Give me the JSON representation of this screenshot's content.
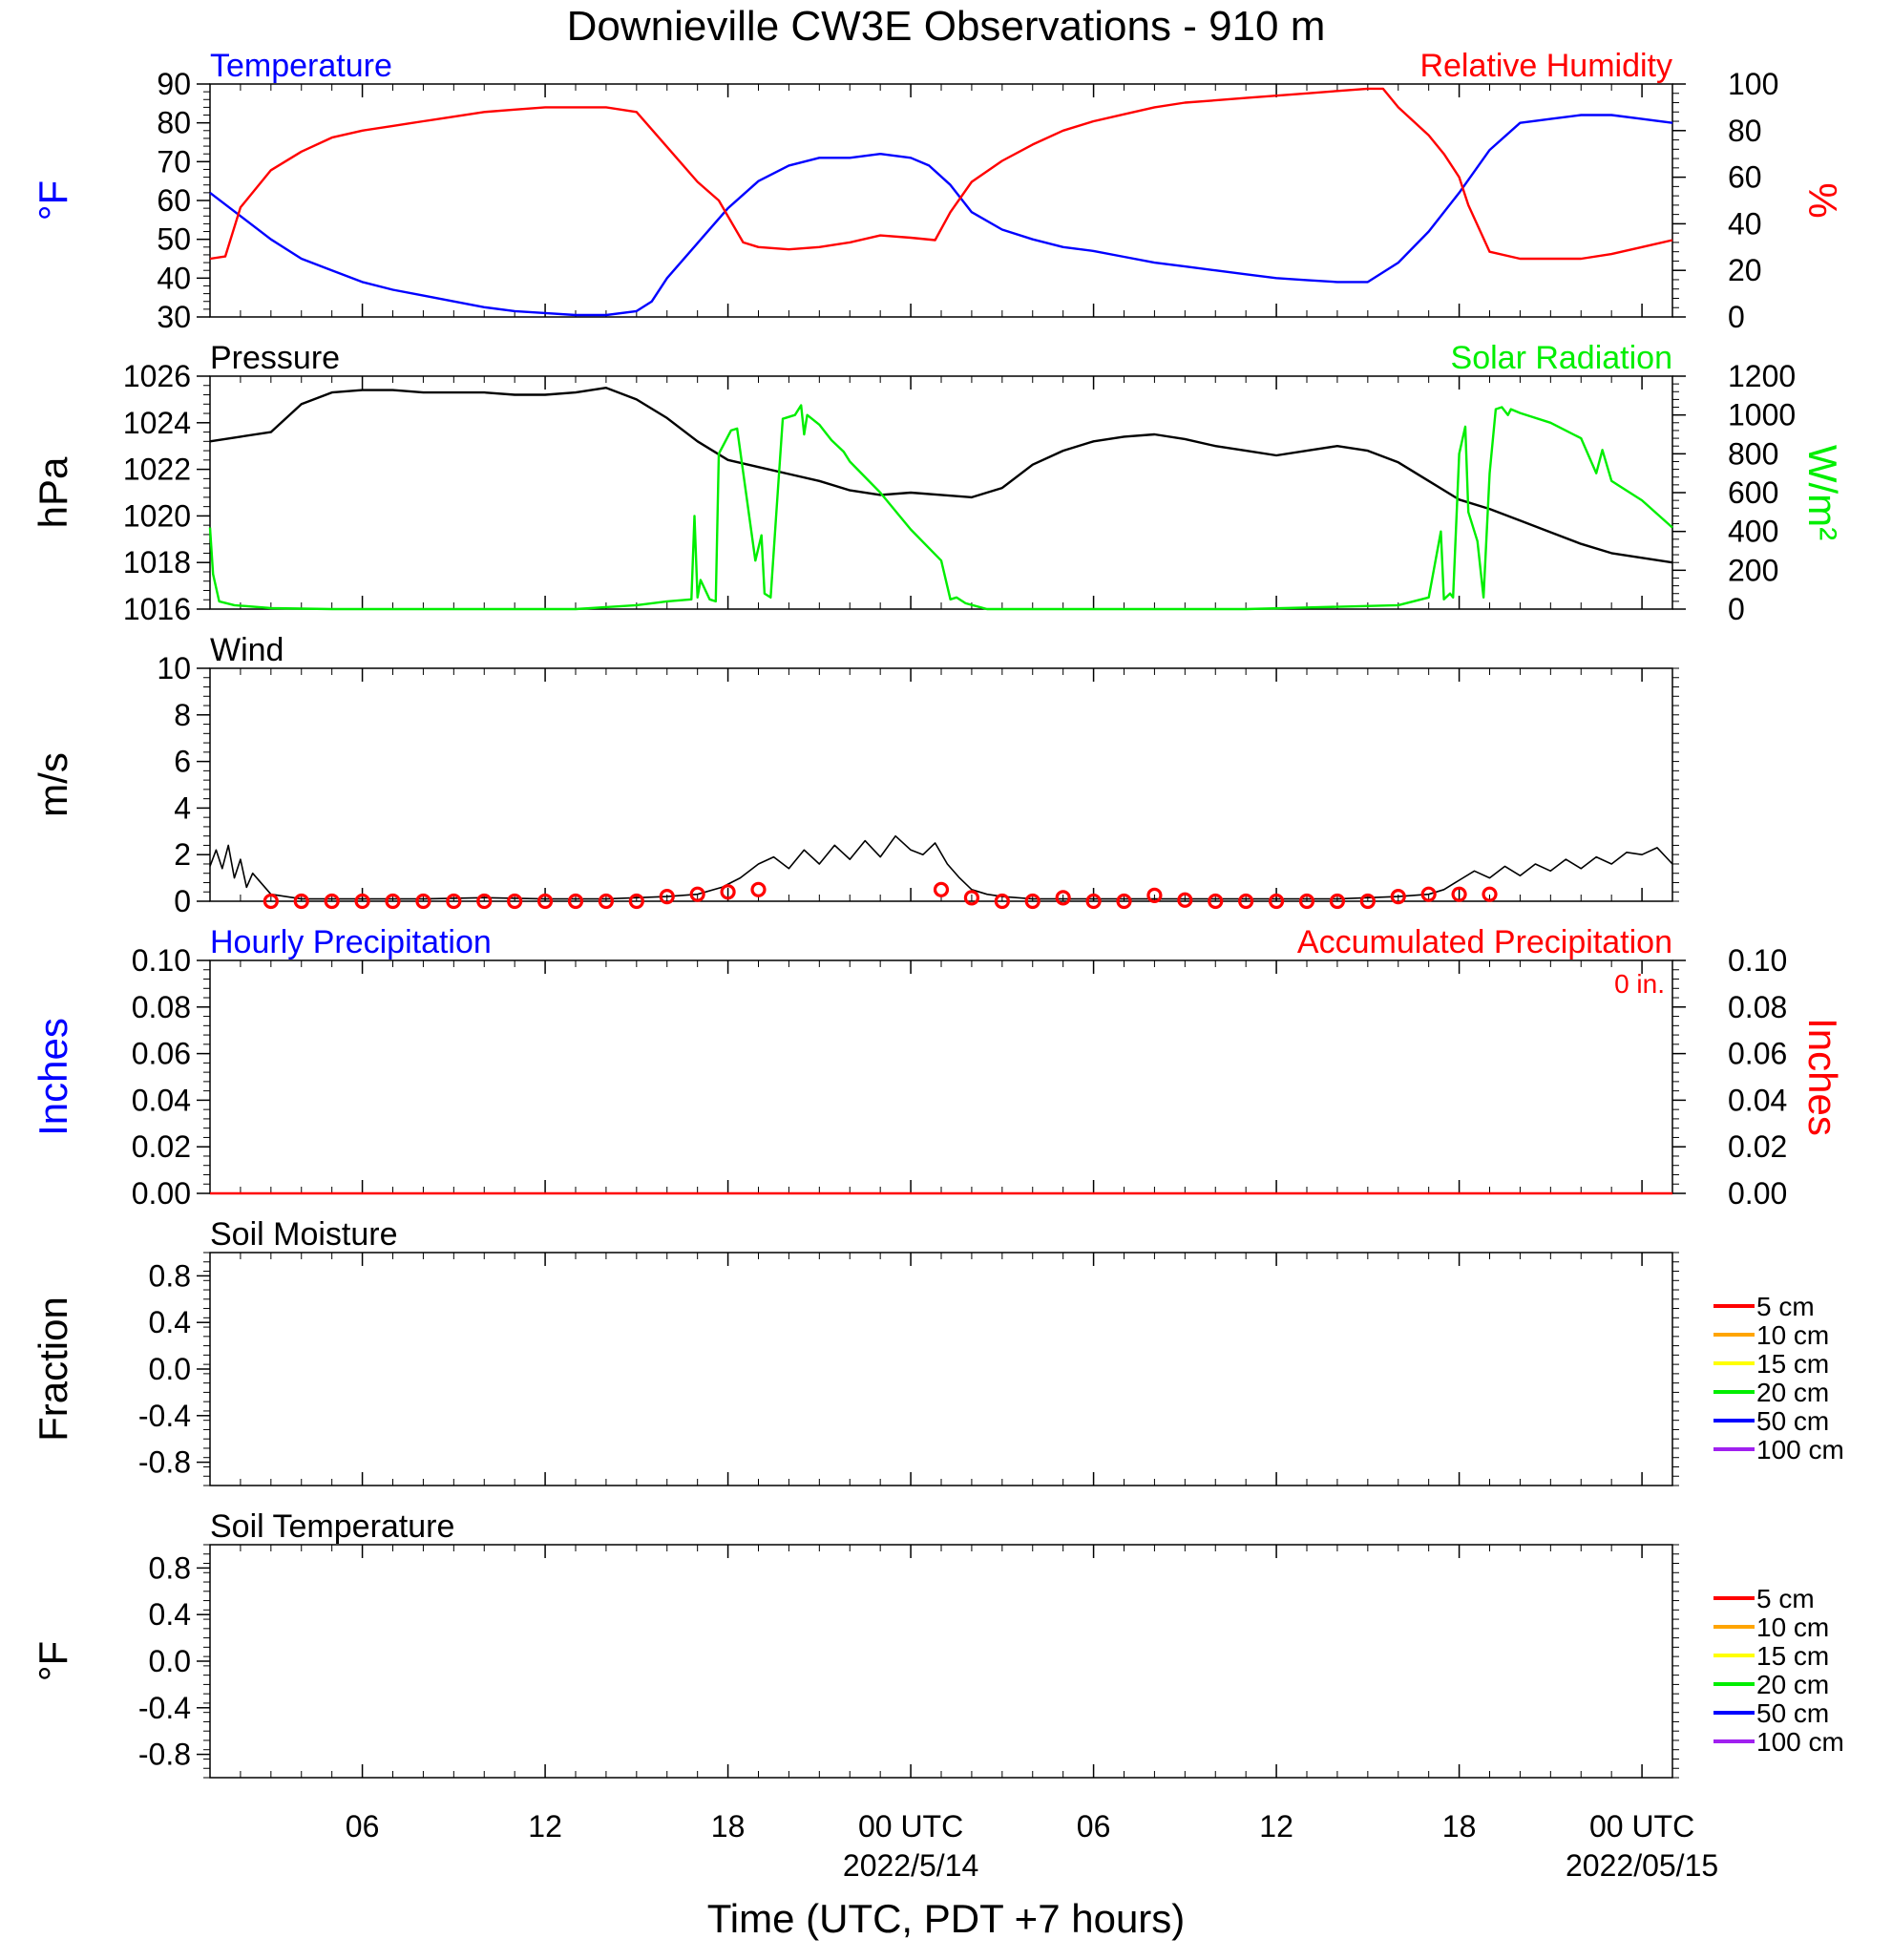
{
  "figure": {
    "title": "Downieville CW3E Observations - 910 m",
    "xlabel": "Time (UTC, PDT +7 hours)",
    "x_ticks": [
      {
        "hour": 6,
        "label": "06",
        "date": ""
      },
      {
        "hour": 12,
        "label": "12",
        "date": ""
      },
      {
        "hour": 18,
        "label": "18",
        "date": ""
      },
      {
        "hour": 24,
        "label": "00 UTC",
        "date": "2022/5/14"
      },
      {
        "hour": 30,
        "label": "06",
        "date": ""
      },
      {
        "hour": 36,
        "label": "12",
        "date": ""
      },
      {
        "hour": 42,
        "label": "18",
        "date": ""
      },
      {
        "hour": 48,
        "label": "00 UTC",
        "date": "2022/05/15"
      }
    ],
    "x_range_hours": [
      1,
      49
    ],
    "colors": {
      "blue": "#0000ff",
      "red": "#ff0000",
      "green": "#00ee00",
      "black": "#000000",
      "orange": "#ffa500",
      "yellow": "#ffff00",
      "purple": "#a020f0"
    }
  },
  "chart_data": [
    {
      "type": "line",
      "panel": "temperature_rh",
      "title_left": "Temperature",
      "title_right": "Relative Humidity",
      "ylabel_left": "°F",
      "ylabel_right": "%",
      "ylim_left": [
        30,
        90
      ],
      "ylim_right": [
        0,
        100
      ],
      "yticks_left": [
        "30",
        "40",
        "50",
        "60",
        "70",
        "80",
        "90"
      ],
      "yticks_right": [
        "0",
        "20",
        "40",
        "60",
        "80",
        "100"
      ],
      "series": [
        {
          "name": "Temperature",
          "axis": "left",
          "color": "#0000ff",
          "x_hours": [
            1,
            2,
            3,
            4,
            5,
            6,
            7,
            8,
            9,
            10,
            11,
            12,
            13,
            14,
            15,
            15.5,
            16,
            17,
            18,
            19,
            20,
            21,
            22,
            23,
            24,
            24.6,
            25.3,
            26,
            27,
            28,
            29,
            30,
            31,
            32,
            33,
            34,
            35,
            36,
            37,
            38,
            39,
            40,
            41,
            42,
            43,
            44,
            45,
            46,
            47,
            48,
            49
          ],
          "values": [
            62,
            56,
            50,
            45,
            42,
            39,
            37,
            35.5,
            34,
            32.5,
            31.5,
            31,
            30.5,
            30.5,
            31.5,
            34,
            40,
            49,
            58,
            65,
            69,
            71,
            71,
            72,
            71,
            69,
            64,
            57,
            52.5,
            50,
            48,
            47,
            45.5,
            44,
            43,
            42,
            41,
            40,
            39.5,
            39,
            39,
            44,
            52,
            62,
            73,
            80,
            81,
            82,
            82,
            81,
            80
          ]
        },
        {
          "name": "Relative Humidity",
          "axis": "right",
          "color": "#ff0000",
          "x_hours": [
            1,
            1.5,
            2,
            3,
            4,
            5,
            6,
            7,
            8,
            9,
            10,
            11,
            12,
            13,
            14,
            15,
            16,
            17,
            17.7,
            18.5,
            19,
            20,
            21,
            22,
            23,
            24,
            24.8,
            25.3,
            26,
            27,
            28,
            29,
            30,
            31,
            32,
            33,
            34,
            35,
            36,
            37,
            38,
            39,
            39.5,
            40,
            41,
            41.5,
            42,
            42.3,
            43,
            44,
            45,
            46,
            47,
            48,
            49
          ],
          "values": [
            25,
            26,
            47,
            63,
            71,
            77,
            80,
            82,
            84,
            86,
            88,
            89,
            90,
            90,
            90,
            88,
            73,
            58,
            50,
            32,
            30,
            29,
            30,
            32,
            35,
            34,
            33,
            45,
            58,
            67,
            74,
            80,
            84,
            87,
            90,
            92,
            93,
            94,
            95,
            96,
            97,
            98,
            98,
            90,
            78,
            70,
            60,
            48,
            28,
            25,
            25,
            25,
            27,
            30,
            33
          ]
        }
      ]
    },
    {
      "type": "line",
      "panel": "pressure_solar",
      "title_left": "Pressure",
      "title_right": "Solar Radiation",
      "ylabel_left": "hPa",
      "ylabel_right": "W/m²",
      "ylim_left": [
        1016,
        1026
      ],
      "ylim_right": [
        0,
        1200
      ],
      "yticks_left": [
        "1016",
        "1018",
        "1020",
        "1022",
        "1024",
        "1026"
      ],
      "yticks_right": [
        "0",
        "200",
        "400",
        "600",
        "800",
        "1000",
        "1200"
      ],
      "series": [
        {
          "name": "Pressure",
          "axis": "left",
          "color": "#000000",
          "x_hours": [
            1,
            2,
            3,
            4,
            5,
            6,
            7,
            8,
            9,
            10,
            11,
            12,
            13,
            14,
            15,
            16,
            17,
            18,
            19,
            20,
            21,
            22,
            23,
            24,
            25,
            26,
            27,
            28,
            29,
            30,
            31,
            32,
            33,
            34,
            35,
            36,
            37,
            38,
            39,
            40,
            41,
            42,
            43,
            44,
            45,
            46,
            47,
            48,
            49
          ],
          "values": [
            1023.2,
            1023.4,
            1023.6,
            1024.8,
            1025.3,
            1025.4,
            1025.4,
            1025.3,
            1025.3,
            1025.3,
            1025.2,
            1025.2,
            1025.3,
            1025.5,
            1025.0,
            1024.2,
            1023.2,
            1022.4,
            1022.1,
            1021.8,
            1021.5,
            1021.1,
            1020.9,
            1021.0,
            1020.9,
            1020.8,
            1021.2,
            1022.2,
            1022.8,
            1023.2,
            1023.4,
            1023.5,
            1023.3,
            1023.0,
            1022.8,
            1022.6,
            1022.8,
            1023.0,
            1022.8,
            1022.3,
            1021.5,
            1020.7,
            1020.3,
            1019.8,
            1019.3,
            1018.8,
            1018.4,
            1018.2,
            1018.0
          ]
        },
        {
          "name": "Solar Radiation",
          "axis": "right",
          "color": "#00ee00",
          "x_hours": [
            1,
            1.1,
            1.3,
            1.8,
            3,
            5,
            10,
            13,
            15,
            16,
            16.8,
            16.9,
            17.0,
            17.1,
            17.4,
            17.6,
            17.7,
            18.1,
            18.3,
            18.9,
            19.1,
            19.2,
            19.4,
            19.6,
            19.8,
            20.2,
            20.4,
            20.5,
            20.6,
            21.0,
            21.2,
            21.4,
            21.8,
            22.0,
            23,
            24,
            25,
            25.3,
            25.5,
            25.8,
            26.5,
            28,
            30,
            35,
            40,
            41,
            41.4,
            41.5,
            41.7,
            41.8,
            42.0,
            42.2,
            42.3,
            42.6,
            42.8,
            43.0,
            43.2,
            43.4,
            43.6,
            43.7,
            44.0,
            45,
            46,
            46.5,
            46.7,
            47,
            48,
            49
          ],
          "values": [
            420,
            180,
            40,
            20,
            5,
            0,
            0,
            0,
            20,
            40,
            50,
            480,
            60,
            150,
            50,
            40,
            800,
            920,
            930,
            250,
            380,
            80,
            60,
            520,
            980,
            1000,
            1050,
            900,
            1000,
            950,
            910,
            870,
            810,
            760,
            600,
            410,
            250,
            50,
            60,
            30,
            0,
            0,
            0,
            0,
            20,
            60,
            400,
            50,
            80,
            60,
            800,
            940,
            500,
            350,
            60,
            700,
            1030,
            1040,
            1000,
            1030,
            1010,
            960,
            880,
            700,
            820,
            660,
            560,
            420
          ]
        }
      ]
    },
    {
      "type": "line",
      "panel": "wind",
      "title_left": "Wind",
      "ylabel_left": "m/s",
      "ylim_left": [
        0,
        10
      ],
      "yticks_left": [
        "0",
        "2",
        "4",
        "6",
        "8",
        "10"
      ],
      "series": [
        {
          "name": "Wind",
          "color": "#000000",
          "x_hours": [
            1,
            1.2,
            1.4,
            1.6,
            1.8,
            2,
            2.2,
            2.4,
            3,
            4,
            6,
            8,
            10,
            12,
            14,
            15,
            16,
            17,
            17.8,
            18.4,
            19,
            19.5,
            20,
            20.5,
            21,
            21.5,
            22,
            22.5,
            23,
            23.5,
            24,
            24.4,
            24.8,
            25.2,
            25.6,
            26,
            26.5,
            27,
            28,
            30,
            32,
            34,
            36,
            38,
            40,
            41,
            41.5,
            42,
            42.5,
            43,
            43.5,
            44,
            44.5,
            45,
            45.5,
            46,
            46.5,
            47,
            47.5,
            48,
            48.5,
            49
          ],
          "values": [
            1.5,
            2.2,
            1.4,
            2.4,
            1.0,
            1.8,
            0.6,
            1.2,
            0.3,
            0.1,
            0.1,
            0.1,
            0.15,
            0.1,
            0.1,
            0.15,
            0.2,
            0.3,
            0.6,
            1.0,
            1.6,
            1.9,
            1.4,
            2.2,
            1.6,
            2.4,
            1.8,
            2.6,
            1.9,
            2.8,
            2.2,
            2.0,
            2.5,
            1.6,
            1.0,
            0.5,
            0.3,
            0.2,
            0.1,
            0.1,
            0.1,
            0.1,
            0.1,
            0.1,
            0.2,
            0.3,
            0.5,
            0.9,
            1.3,
            1.0,
            1.5,
            1.1,
            1.6,
            1.3,
            1.8,
            1.4,
            1.9,
            1.6,
            2.1,
            2.0,
            2.3,
            1.6
          ]
        },
        {
          "name": "Hourly wind markers",
          "color": "#ff0000",
          "marker": "circle",
          "x_hours": [
            3,
            4,
            5,
            6,
            7,
            8,
            9,
            10,
            11,
            12,
            13,
            14,
            15,
            16,
            17,
            18,
            19,
            25,
            26,
            27,
            28,
            29,
            30,
            31,
            32,
            33,
            34,
            35,
            36,
            37,
            38,
            39,
            40,
            41,
            42,
            43
          ],
          "values": [
            0.0,
            0.0,
            0.0,
            0.0,
            0.0,
            0.0,
            0.0,
            0.0,
            0.0,
            0.0,
            0.0,
            0.0,
            0.0,
            0.2,
            0.3,
            0.4,
            0.5,
            0.5,
            0.15,
            0.0,
            0.0,
            0.15,
            0.0,
            0.0,
            0.25,
            0.05,
            0.0,
            0.0,
            0.0,
            0.0,
            0.0,
            0.0,
            0.2,
            0.3,
            0.3,
            0.3
          ]
        }
      ]
    },
    {
      "type": "line",
      "panel": "precipitation",
      "title_left": "Hourly Precipitation",
      "title_right": "Accumulated Precipitation",
      "annotation": "0 in.",
      "ylabel_left": "Inches",
      "ylabel_right": "Inches",
      "ylim_left": [
        0,
        0.1
      ],
      "ylim_right": [
        0,
        0.1
      ],
      "yticks_left": [
        "0.00",
        "0.02",
        "0.04",
        "0.06",
        "0.08",
        "0.10"
      ],
      "yticks_right": [
        "0.00",
        "0.02",
        "0.04",
        "0.06",
        "0.08",
        "0.10"
      ],
      "series": [
        {
          "name": "Accumulated Precipitation",
          "color": "#ff0000",
          "x_hours": [
            1,
            49
          ],
          "values": [
            0,
            0
          ]
        }
      ]
    },
    {
      "type": "line",
      "panel": "soil_moisture",
      "title_left": "Soil Moisture",
      "ylabel_left": "Fraction",
      "ylim_left": [
        -1,
        1
      ],
      "yticks_left": [
        "-0.8",
        "-0.4",
        "0.0",
        "0.4",
        "0.8"
      ],
      "legend": [
        {
          "label": "5 cm",
          "color": "#ff0000"
        },
        {
          "label": "10 cm",
          "color": "#ffa500"
        },
        {
          "label": "15 cm",
          "color": "#ffff00"
        },
        {
          "label": "20 cm",
          "color": "#00ee00"
        },
        {
          "label": "50 cm",
          "color": "#0000ff"
        },
        {
          "label": "100 cm",
          "color": "#a020f0"
        }
      ],
      "series": []
    },
    {
      "type": "line",
      "panel": "soil_temperature",
      "title_left": "Soil Temperature",
      "ylabel_left": "°F",
      "ylim_left": [
        -1,
        1
      ],
      "yticks_left": [
        "-0.8",
        "-0.4",
        "0.0",
        "0.4",
        "0.8"
      ],
      "legend": [
        {
          "label": "5 cm",
          "color": "#ff0000"
        },
        {
          "label": "10 cm",
          "color": "#ffa500"
        },
        {
          "label": "15 cm",
          "color": "#ffff00"
        },
        {
          "label": "20 cm",
          "color": "#00ee00"
        },
        {
          "label": "50 cm",
          "color": "#0000ff"
        },
        {
          "label": "100 cm",
          "color": "#a020f0"
        }
      ],
      "series": []
    }
  ]
}
